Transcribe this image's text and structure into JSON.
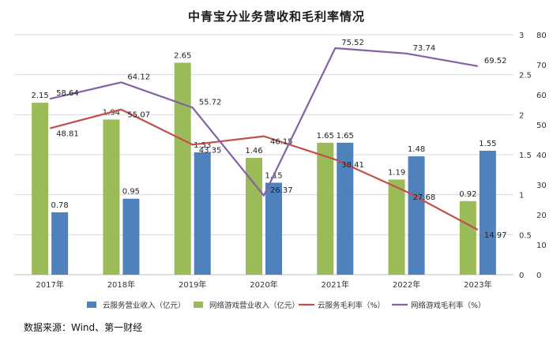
{
  "chart_data": {
    "type": "bar+line",
    "title": "中青宝分业务营收和毛利率情况",
    "categories": [
      "2017年",
      "2018年",
      "2019年",
      "2020年",
      "2021年",
      "2022年",
      "2023年"
    ],
    "bars": [
      {
        "name": "网络游戏营业收入（亿元）",
        "color": "#9bbb59",
        "axis": "left",
        "values": [
          2.15,
          1.94,
          2.65,
          1.46,
          1.65,
          1.19,
          0.92
        ],
        "labels": [
          "2.15",
          "1.94",
          "2.65",
          "1.46",
          "1.65",
          "1.19",
          "0.92"
        ]
      },
      {
        "name": "云服务营业收入（亿元）",
        "color": "#4f81bd",
        "axis": "left",
        "values": [
          0.78,
          0.95,
          1.53,
          1.15,
          1.65,
          1.48,
          1.55
        ],
        "labels": [
          "0.78",
          "0.95",
          "1.53",
          "1.15",
          "1.65",
          "1.48",
          "1.55"
        ]
      }
    ],
    "lines": [
      {
        "name": "云服务毛利率（%）",
        "color": "#c0504d",
        "axis": "right",
        "values": [
          48.81,
          55.07,
          43.35,
          46.15,
          38.41,
          27.68,
          14.97
        ],
        "labels": [
          "48.81",
          "55.07",
          "43.35",
          "46.15",
          "38.41",
          "27.68",
          "14.97"
        ]
      },
      {
        "name": "网络游戏毛利率（%）",
        "color": "#8064a2",
        "axis": "right",
        "values": [
          58.64,
          64.12,
          55.72,
          26.37,
          75.52,
          73.74,
          69.52
        ],
        "labels": [
          "58.64",
          "64.12",
          "55.72",
          "26.37",
          "75.52",
          "73.74",
          "69.52"
        ]
      }
    ],
    "left_axis": {
      "min": 0,
      "max": 3,
      "ticks": [
        "0",
        "0.5",
        "1",
        "1.5",
        "2",
        "2.5",
        "3"
      ]
    },
    "right_axis": {
      "min": 0,
      "max": 80,
      "ticks": [
        "0",
        "10",
        "20",
        "30",
        "40",
        "50",
        "60",
        "70",
        "80"
      ]
    },
    "legend": [
      "云服务营业收入（亿元）",
      "网络游戏营业收入（亿元）",
      "云服务毛利率（%）",
      "网络游戏毛利率（%）"
    ],
    "legend_position": "bottom"
  },
  "source_text": "数据来源：Wind、第一财经"
}
